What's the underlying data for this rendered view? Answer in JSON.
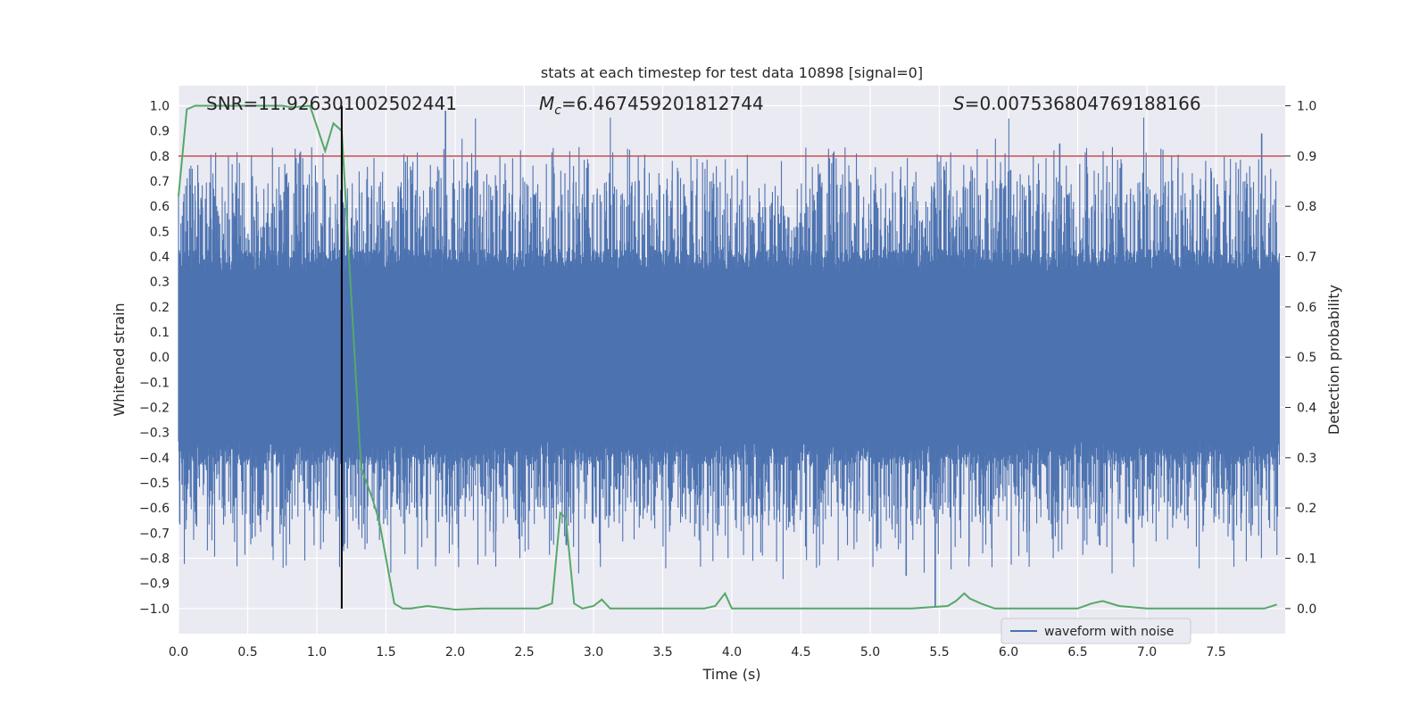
{
  "chart_data": {
    "type": "line",
    "title": "stats at each timestep for test data 10898 [signal=0]",
    "xlabel": "Time (s)",
    "ylabel_left": "Whitened strain",
    "ylabel_right": "Detection probability",
    "xlim": [
      0.0,
      8.0
    ],
    "ylim_left": [
      -1.1,
      1.08
    ],
    "ylim_right": [
      -0.05,
      1.04
    ],
    "grid": true,
    "x_ticks": [
      "0.0",
      "0.5",
      "1.0",
      "1.5",
      "2.0",
      "2.5",
      "3.0",
      "3.5",
      "4.0",
      "4.5",
      "5.0",
      "5.5",
      "6.0",
      "6.5",
      "7.0",
      "7.5"
    ],
    "y_ticks_left": [
      "1.0",
      "0.9",
      "0.8",
      "0.7",
      "0.6",
      "0.5",
      "0.4",
      "0.3",
      "0.2",
      "0.1",
      "0.0",
      "−0.1",
      "−0.2",
      "−0.3",
      "−0.4",
      "−0.5",
      "−0.6",
      "−0.7",
      "−0.8",
      "−0.9",
      "−1.0"
    ],
    "y_ticks_right": [
      "1.0",
      "0.9",
      "0.8",
      "0.7",
      "0.6",
      "0.5",
      "0.4",
      "0.3",
      "0.2",
      "0.1",
      "0.0"
    ],
    "annotations": {
      "snr": "SNR=11.926301002502441",
      "mc_symbol": "M",
      "mc_sub": "c",
      "mc_value": "=6.467459201812744",
      "s_symbol": "S",
      "s_value": "=0.007536804769188166"
    },
    "threshold_right": 0.9,
    "vline_x": 1.18,
    "legend": {
      "label": "waveform with noise",
      "position": "lower-right"
    },
    "series": [
      {
        "name": "waveform with noise",
        "axis": "left",
        "color": "#4c72b0",
        "style": "noise",
        "amplitude_typical": 0.38,
        "amplitude_peak": 0.99
      },
      {
        "axis": "right",
        "color": "#55a868",
        "x": [
          0.0,
          0.06,
          0.12,
          0.3,
          0.55,
          0.75,
          0.82,
          0.95,
          1.06,
          1.12,
          1.18,
          1.32,
          1.4,
          1.45,
          1.5,
          1.56,
          1.62,
          1.68,
          1.8,
          2.0,
          2.2,
          2.5,
          2.6,
          2.65,
          2.7,
          2.76,
          2.8,
          2.86,
          2.92,
          3.0,
          3.06,
          3.12,
          3.2,
          3.5,
          3.8,
          3.88,
          3.95,
          4.0,
          4.2,
          4.6,
          5.0,
          5.3,
          5.56,
          5.62,
          5.68,
          5.72,
          5.8,
          5.9,
          6.0,
          6.2,
          6.5,
          6.6,
          6.68,
          6.8,
          7.0,
          7.5,
          7.85,
          7.94
        ],
        "y": [
          0.82,
          0.993,
          1.0,
          1.0,
          1.0,
          1.0,
          0.997,
          1.0,
          0.91,
          0.965,
          0.95,
          0.28,
          0.22,
          0.175,
          0.1,
          0.01,
          0.0,
          0.0,
          0.005,
          -0.002,
          0.0,
          0.0,
          0.0,
          0.005,
          0.01,
          0.19,
          0.18,
          0.01,
          0.0,
          0.005,
          0.018,
          0.0,
          0.0,
          0.0,
          0.0,
          0.005,
          0.03,
          0.0,
          0.0,
          0.0,
          0.0,
          0.0,
          0.005,
          0.015,
          0.03,
          0.02,
          0.01,
          0.0,
          0.0,
          0.0,
          0.0,
          0.01,
          0.015,
          0.005,
          0.0,
          0.0,
          0.0,
          0.008
        ]
      }
    ]
  }
}
